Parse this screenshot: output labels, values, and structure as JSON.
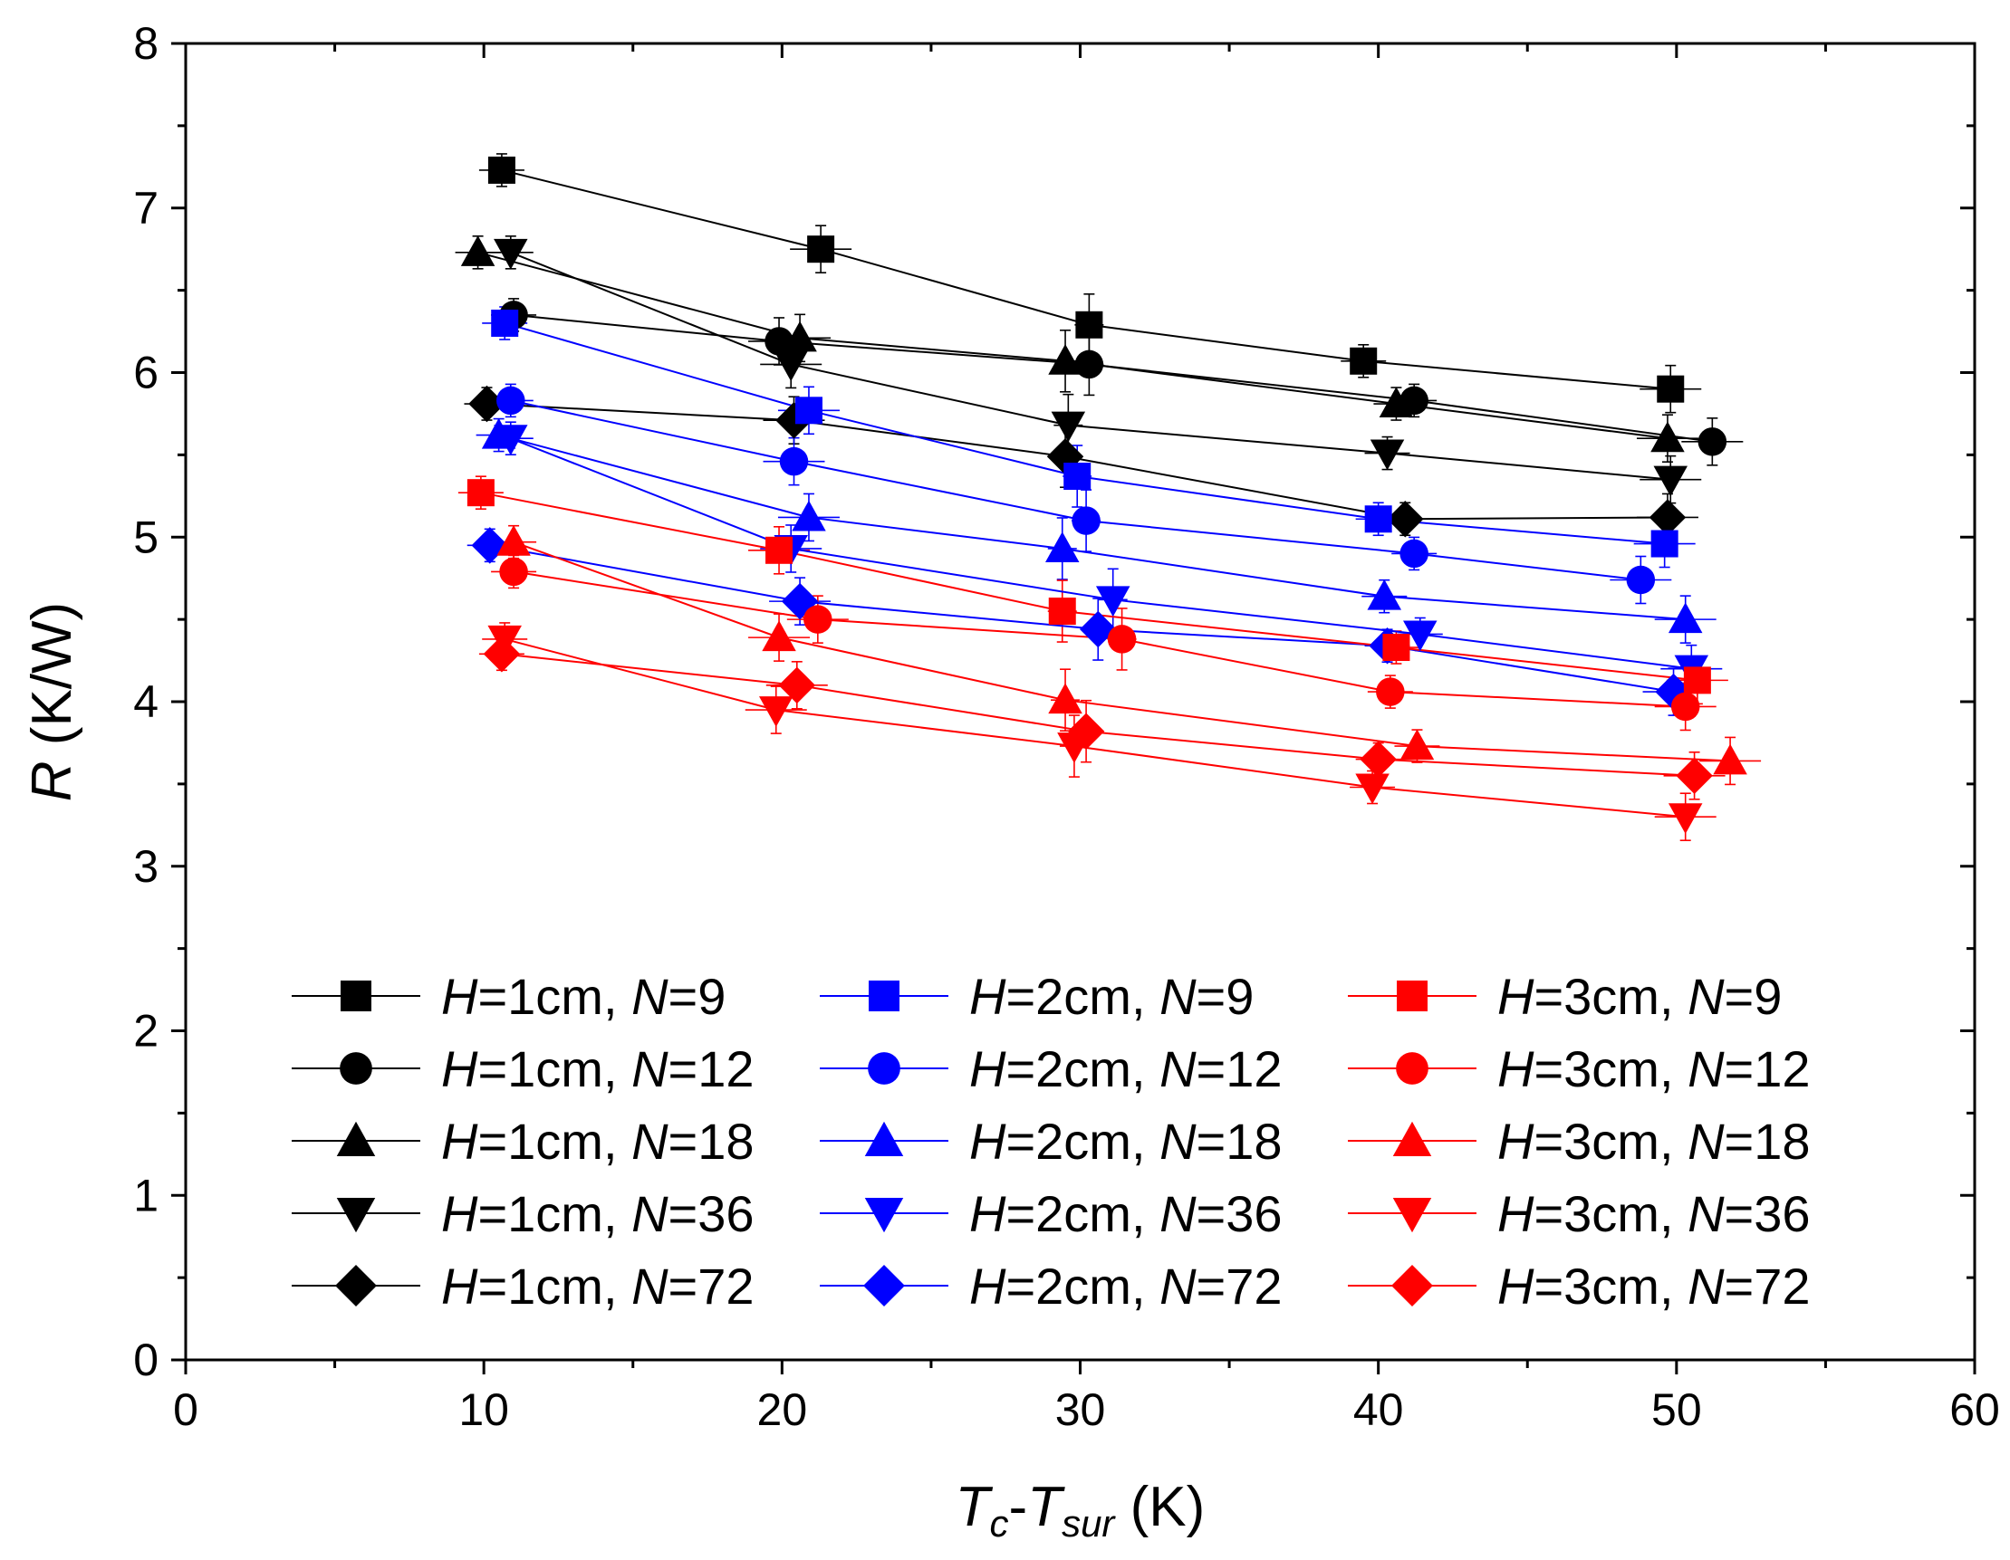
{
  "chart_data": {
    "type": "scatter",
    "title": "",
    "xlabel": {
      "main": "T",
      "sub1": "c",
      "dash": "-",
      "main2": "T",
      "sub2": "sur",
      "unit": " (K)"
    },
    "ylabel": {
      "var": "R",
      "unit": " (K/W)"
    },
    "xlim": [
      0,
      60
    ],
    "ylim": [
      0,
      8
    ],
    "x_ticks": [
      "0",
      "10",
      "20",
      "30",
      "40",
      "50",
      "60"
    ],
    "y_ticks": [
      "0",
      "1",
      "2",
      "3",
      "4",
      "5",
      "6",
      "7",
      "8"
    ],
    "grid": false,
    "legend_position": "bottom-center",
    "series": [
      {
        "name": "H=1cm, N=9",
        "label": {
          "h": "H",
          "hval": "=1cm, ",
          "n": "N",
          "nval": "=9"
        },
        "color": "#000000",
        "marker": "square",
        "x": [
          10.6,
          21.3,
          30.3,
          39.5,
          49.8
        ],
        "y": [
          7.23,
          6.75,
          6.29,
          6.07,
          5.9
        ]
      },
      {
        "name": "H=1cm, N=12",
        "label": {
          "h": "H",
          "hval": "=1cm, ",
          "n": "N",
          "nval": "=12"
        },
        "color": "#000000",
        "marker": "circle",
        "x": [
          11.0,
          19.9,
          30.3,
          41.2,
          51.2
        ],
        "y": [
          6.35,
          6.19,
          6.05,
          5.83,
          5.58
        ]
      },
      {
        "name": "H=1cm, N=18",
        "label": {
          "h": "H",
          "hval": "=1cm, ",
          "n": "N",
          "nval": "=18"
        },
        "color": "#000000",
        "marker": "triangle-up",
        "x": [
          9.8,
          20.6,
          29.5,
          40.6,
          49.7
        ],
        "y": [
          6.73,
          6.21,
          6.07,
          5.81,
          5.6
        ]
      },
      {
        "name": "H=1cm, N=36",
        "label": {
          "h": "H",
          "hval": "=1cm, ",
          "n": "N",
          "nval": "=36"
        },
        "color": "#000000",
        "marker": "triangle-down",
        "x": [
          10.9,
          20.3,
          29.6,
          40.3,
          49.8
        ],
        "y": [
          6.73,
          6.05,
          5.68,
          5.51,
          5.35
        ]
      },
      {
        "name": "H=1cm, N=72",
        "label": {
          "h": "H",
          "hval": "=1cm, ",
          "n": "N",
          "nval": "=72"
        },
        "color": "#000000",
        "marker": "diamond",
        "x": [
          10.1,
          20.4,
          29.5,
          40.9,
          49.7
        ],
        "y": [
          5.81,
          5.71,
          5.49,
          5.11,
          5.12
        ]
      },
      {
        "name": "H=2cm, N=9",
        "label": {
          "h": "H",
          "hval": "=2cm, ",
          "n": "N",
          "nval": "=9"
        },
        "color": "#0000ff",
        "marker": "square",
        "x": [
          10.7,
          20.9,
          29.9,
          40.0,
          49.6
        ],
        "y": [
          6.3,
          5.77,
          5.37,
          5.11,
          4.96
        ]
      },
      {
        "name": "H=2cm, N=12",
        "label": {
          "h": "H",
          "hval": "=2cm, ",
          "n": "N",
          "nval": "=12"
        },
        "color": "#0000ff",
        "marker": "circle",
        "x": [
          10.9,
          20.4,
          30.2,
          41.2,
          48.8
        ],
        "y": [
          5.83,
          5.46,
          5.1,
          4.9,
          4.74
        ]
      },
      {
        "name": "H=2cm, N=18",
        "label": {
          "h": "H",
          "hval": "=2cm, ",
          "n": "N",
          "nval": "=18"
        },
        "color": "#0000ff",
        "marker": "triangle-up",
        "x": [
          10.5,
          20.9,
          29.4,
          40.2,
          50.3
        ],
        "y": [
          5.62,
          5.12,
          4.93,
          4.64,
          4.5
        ]
      },
      {
        "name": "H=2cm, N=36",
        "label": {
          "h": "H",
          "hval": "=2cm, ",
          "n": "N",
          "nval": "=36"
        },
        "color": "#0000ff",
        "marker": "triangle-down",
        "x": [
          10.9,
          20.3,
          31.1,
          41.4,
          50.5
        ],
        "y": [
          5.6,
          4.93,
          4.62,
          4.41,
          4.2
        ]
      },
      {
        "name": "H=2cm, N=72",
        "label": {
          "h": "H",
          "hval": "=2cm, ",
          "n": "N",
          "nval": "=72"
        },
        "color": "#0000ff",
        "marker": "diamond",
        "x": [
          10.2,
          20.6,
          30.6,
          40.3,
          49.9
        ],
        "y": [
          4.95,
          4.61,
          4.44,
          4.34,
          4.06
        ]
      },
      {
        "name": "H=3cm, N=9",
        "label": {
          "h": "H",
          "hval": "=3cm, ",
          "n": "N",
          "nval": "=9"
        },
        "color": "#ff0000",
        "marker": "square",
        "x": [
          9.9,
          19.9,
          29.4,
          40.6,
          50.7
        ],
        "y": [
          5.27,
          4.92,
          4.55,
          4.33,
          4.13
        ]
      },
      {
        "name": "H=3cm, N=12",
        "label": {
          "h": "H",
          "hval": "=3cm, ",
          "n": "N",
          "nval": "=12"
        },
        "color": "#ff0000",
        "marker": "circle",
        "x": [
          11.0,
          21.2,
          31.4,
          40.4,
          50.3
        ],
        "y": [
          4.79,
          4.5,
          4.38,
          4.06,
          3.97
        ]
      },
      {
        "name": "H=3cm, N=18",
        "label": {
          "h": "H",
          "hval": "=3cm, ",
          "n": "N",
          "nval": "=18"
        },
        "color": "#ff0000",
        "marker": "triangle-up",
        "x": [
          11.0,
          19.9,
          29.5,
          41.3,
          51.8
        ],
        "y": [
          4.97,
          4.39,
          4.01,
          3.73,
          3.64
        ]
      },
      {
        "name": "H=3cm, N=36",
        "label": {
          "h": "H",
          "hval": "=3cm, ",
          "n": "N",
          "nval": "=36"
        },
        "color": "#ff0000",
        "marker": "triangle-down",
        "x": [
          10.7,
          19.8,
          29.8,
          39.8,
          50.3
        ],
        "y": [
          4.38,
          3.95,
          3.73,
          3.48,
          3.3
        ]
      },
      {
        "name": "H=3cm, N=72",
        "label": {
          "h": "H",
          "hval": "=3cm, ",
          "n": "N",
          "nval": "=72"
        },
        "color": "#ff0000",
        "marker": "diamond",
        "x": [
          10.6,
          20.5,
          30.2,
          40.0,
          50.6
        ],
        "y": [
          4.29,
          4.1,
          3.82,
          3.65,
          3.55
        ]
      }
    ]
  }
}
